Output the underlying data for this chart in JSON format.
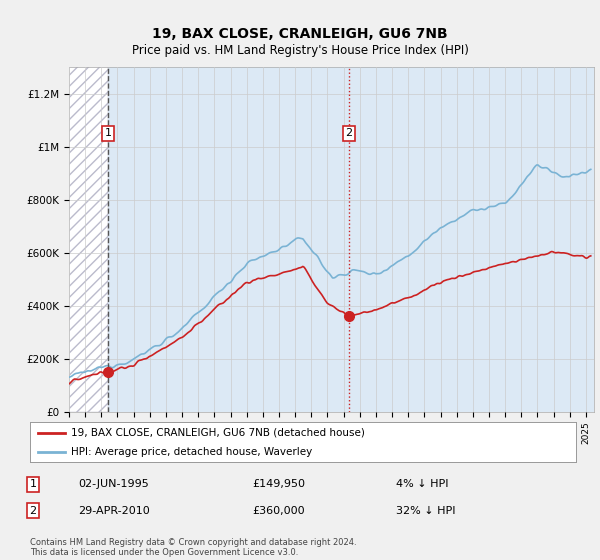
{
  "title": "19, BAX CLOSE, CRANLEIGH, GU6 7NB",
  "subtitle": "Price paid vs. HM Land Registry's House Price Index (HPI)",
  "ylim": [
    0,
    1300000
  ],
  "yticks": [
    0,
    200000,
    400000,
    600000,
    800000,
    1000000,
    1200000
  ],
  "ytick_labels": [
    "£0",
    "£200K",
    "£400K",
    "£600K",
    "£800K",
    "£1M",
    "£1.2M"
  ],
  "hpi_color": "#7ab3d4",
  "price_color": "#cc2222",
  "vline1_color": "#555555",
  "vline1_style": "--",
  "vline2_color": "#cc2222",
  "vline2_style": ":",
  "background_color": "#f0f0f0",
  "plot_bg_color": "#dce9f5",
  "hatch_bg_color": "#ffffff",
  "legend_label_red": "19, BAX CLOSE, CRANLEIGH, GU6 7NB (detached house)",
  "legend_label_blue": "HPI: Average price, detached house, Waverley",
  "sale1_label": "1",
  "sale1_date": "02-JUN-1995",
  "sale1_price": "£149,950",
  "sale1_hpi": "4% ↓ HPI",
  "sale1_year": 1995.42,
  "sale1_value": 149950,
  "sale2_label": "2",
  "sale2_date": "29-APR-2010",
  "sale2_price": "£360,000",
  "sale2_hpi": "32% ↓ HPI",
  "sale2_year": 2010.33,
  "sale2_value": 360000,
  "xmin": 1993.0,
  "xmax": 2025.5,
  "footer": "Contains HM Land Registry data © Crown copyright and database right 2024.\nThis data is licensed under the Open Government Licence v3.0.",
  "hatch_pattern": "///",
  "hatch_color": "#aaaacc"
}
